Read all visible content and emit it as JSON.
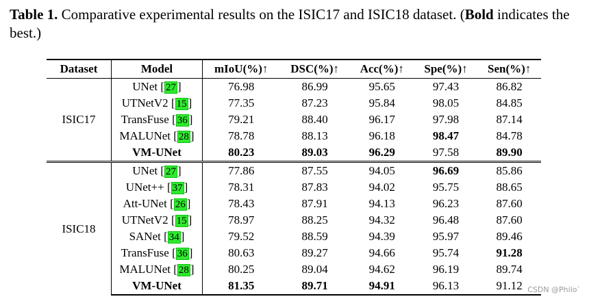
{
  "caption": {
    "label": "Table 1.",
    "text": " Comparative experimental results on the ISIC17 and ISIC18 dataset. (",
    "bold_word": "Bold",
    "text_end": " indicates the best.)"
  },
  "headers": [
    "Dataset",
    "Model",
    "mIoU(%)↑",
    "DSC(%)↑",
    "Acc(%)↑",
    "Spe(%)↑",
    "Sen(%)↑"
  ],
  "groups": [
    {
      "dataset": "ISIC17",
      "rows": [
        {
          "model": "UNet",
          "ref": "27",
          "bold_model": false,
          "values": [
            "76.98",
            "86.99",
            "95.65",
            "97.43",
            "86.82"
          ],
          "bold": [
            false,
            false,
            false,
            false,
            false
          ]
        },
        {
          "model": "UTNetV2",
          "ref": "15",
          "bold_model": false,
          "values": [
            "77.35",
            "87.23",
            "95.84",
            "98.05",
            "84.85"
          ],
          "bold": [
            false,
            false,
            false,
            false,
            false
          ]
        },
        {
          "model": "TransFuse",
          "ref": "36",
          "bold_model": false,
          "values": [
            "79.21",
            "88.40",
            "96.17",
            "97.98",
            "87.14"
          ],
          "bold": [
            false,
            false,
            false,
            false,
            false
          ]
        },
        {
          "model": "MALUNet",
          "ref": "28",
          "bold_model": false,
          "values": [
            "78.78",
            "88.13",
            "96.18",
            "98.47",
            "84.78"
          ],
          "bold": [
            false,
            false,
            false,
            true,
            false
          ]
        },
        {
          "model": "VM-UNet",
          "ref": null,
          "bold_model": true,
          "values": [
            "80.23",
            "89.03",
            "96.29",
            "97.58",
            "89.90"
          ],
          "bold": [
            true,
            true,
            true,
            false,
            true
          ]
        }
      ]
    },
    {
      "dataset": "ISIC18",
      "rows": [
        {
          "model": "UNet",
          "ref": "27",
          "bold_model": false,
          "values": [
            "77.86",
            "87.55",
            "94.05",
            "96.69",
            "85.86"
          ],
          "bold": [
            false,
            false,
            false,
            true,
            false
          ]
        },
        {
          "model": "UNet++",
          "ref": "37",
          "bold_model": false,
          "values": [
            "78.31",
            "87.83",
            "94.02",
            "95.75",
            "88.65"
          ],
          "bold": [
            false,
            false,
            false,
            false,
            false
          ]
        },
        {
          "model": "Att-UNet",
          "ref": "26",
          "bold_model": false,
          "values": [
            "78.43",
            "87.91",
            "94.13",
            "96.23",
            "87.60"
          ],
          "bold": [
            false,
            false,
            false,
            false,
            false
          ]
        },
        {
          "model": "UTNetV2",
          "ref": "15",
          "bold_model": false,
          "values": [
            "78.97",
            "88.25",
            "94.32",
            "96.48",
            "87.60"
          ],
          "bold": [
            false,
            false,
            false,
            false,
            false
          ]
        },
        {
          "model": "SANet",
          "ref": "34",
          "bold_model": false,
          "values": [
            "79.52",
            "88.59",
            "94.39",
            "95.97",
            "89.46"
          ],
          "bold": [
            false,
            false,
            false,
            false,
            false
          ]
        },
        {
          "model": "TransFuse",
          "ref": "36",
          "bold_model": false,
          "values": [
            "80.63",
            "89.27",
            "94.66",
            "95.74",
            "91.28"
          ],
          "bold": [
            false,
            false,
            false,
            false,
            true
          ]
        },
        {
          "model": "MALUNet",
          "ref": "28",
          "bold_model": false,
          "values": [
            "80.25",
            "89.04",
            "94.62",
            "96.19",
            "89.74"
          ],
          "bold": [
            false,
            false,
            false,
            false,
            false
          ]
        },
        {
          "model": "VM-UNet",
          "ref": null,
          "bold_model": true,
          "values": [
            "81.35",
            "89.71",
            "94.91",
            "96.13",
            "91.12"
          ],
          "bold": [
            true,
            true,
            true,
            false,
            false
          ]
        }
      ]
    }
  ],
  "watermark": "CSDN @Philo`"
}
